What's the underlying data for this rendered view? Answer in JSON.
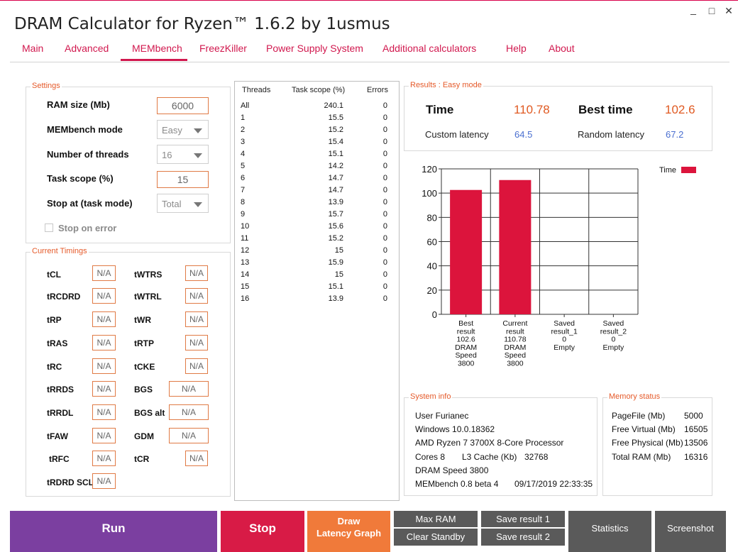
{
  "window": {
    "title": "DRAM Calculator for Ryzen™ 1.6.2 by 1usmus",
    "controls": {
      "minimize": "_",
      "maximize": "□",
      "close": "✕"
    }
  },
  "tabs": [
    "Main",
    "Advanced",
    "MEMbench",
    "FreezKiller",
    "Power Supply System",
    "Additional calculators",
    "Help",
    "About"
  ],
  "active_tab": "MEMbench",
  "settings": {
    "title": "Settings",
    "ram_size_label": "RAM size (Mb)",
    "ram_size_value": "6000",
    "mode_label": "MEMbench mode",
    "mode_value": "Easy",
    "threads_label": "Number of threads",
    "threads_value": "16",
    "task_scope_label": "Task scope (%)",
    "task_scope_value": "15",
    "stop_at_label": "Stop at (task mode)",
    "stop_at_value": "Total",
    "stop_on_error_label": "Stop on error"
  },
  "timings": {
    "title": "Current Timings",
    "left": [
      {
        "label": "tCL",
        "value": "N/A"
      },
      {
        "label": "tRCDRD",
        "value": "N/A"
      },
      {
        "label": "tRP",
        "value": "N/A"
      },
      {
        "label": "tRAS",
        "value": "N/A"
      },
      {
        "label": "tRC",
        "value": "N/A"
      },
      {
        "label": "tRRDS",
        "value": "N/A"
      },
      {
        "label": "tRRDL",
        "value": "N/A"
      },
      {
        "label": "tFAW",
        "value": "N/A"
      },
      {
        "label": "tRFC",
        "value": "N/A"
      },
      {
        "label": "tRDRD SCL",
        "value": "N/A"
      }
    ],
    "right": [
      {
        "label": "tWTRS",
        "value": "N/A"
      },
      {
        "label": "tWTRL",
        "value": "N/A"
      },
      {
        "label": "tWR",
        "value": "N/A"
      },
      {
        "label": "tRTP",
        "value": "N/A"
      },
      {
        "label": "tCKE",
        "value": "N/A"
      },
      {
        "label": "BGS",
        "value": "N/A"
      },
      {
        "label": "BGS alt",
        "value": "N/A"
      },
      {
        "label": "GDM",
        "value": "N/A"
      },
      {
        "label": "tCR",
        "value": "N/A"
      }
    ]
  },
  "threads_table": {
    "headers": [
      "Threads",
      "Task scope (%)",
      "Errors"
    ],
    "rows": [
      [
        "All",
        "240.1",
        "0"
      ],
      [
        "1",
        "15.5",
        "0"
      ],
      [
        "2",
        "15.2",
        "0"
      ],
      [
        "3",
        "15.4",
        "0"
      ],
      [
        "4",
        "15.1",
        "0"
      ],
      [
        "5",
        "14.2",
        "0"
      ],
      [
        "6",
        "14.7",
        "0"
      ],
      [
        "7",
        "14.7",
        "0"
      ],
      [
        "8",
        "13.9",
        "0"
      ],
      [
        "9",
        "15.7",
        "0"
      ],
      [
        "10",
        "15.6",
        "0"
      ],
      [
        "11",
        "15.2",
        "0"
      ],
      [
        "12",
        "15",
        "0"
      ],
      [
        "13",
        "15.9",
        "0"
      ],
      [
        "14",
        "15",
        "0"
      ],
      [
        "15",
        "15.1",
        "0"
      ],
      [
        "16",
        "13.9",
        "0"
      ]
    ]
  },
  "results": {
    "title": "Results : Easy mode",
    "time_label": "Time",
    "time_value": "110.78",
    "best_label": "Best time",
    "best_value": "102.6",
    "custom_label": "Custom latency",
    "custom_value": "64.5",
    "random_label": "Random latency",
    "random_value": "67.2"
  },
  "chart_data": {
    "type": "bar",
    "categories": [
      [
        "Best",
        "result",
        "102.6",
        "DRAM",
        "Speed",
        "3800"
      ],
      [
        "Current",
        "result",
        "110.78",
        "DRAM",
        "Speed",
        "3800"
      ],
      [
        "Saved",
        "result_1",
        "0",
        "Empty"
      ],
      [
        "Saved",
        "result_2",
        "0",
        "Empty"
      ]
    ],
    "series": [
      {
        "name": "Time",
        "values": [
          102.6,
          110.78,
          0,
          0
        ],
        "color": "#dc143c"
      }
    ],
    "ylim": [
      0,
      120
    ],
    "yticks": [
      0,
      20,
      40,
      60,
      80,
      100,
      120
    ],
    "grid": true,
    "legend": "top-right"
  },
  "system_info": {
    "title": "System info",
    "user": "User Furianec",
    "os": "Windows 10.0.18362",
    "cpu": "AMD Ryzen 7 3700X 8-Core Processor",
    "cores": "Cores 8",
    "l3_label": "L3 Cache (Kb)",
    "l3_value": "32768",
    "dram": "DRAM Speed 3800",
    "version": "MEMbench 0.8 beta 4",
    "datetime": "09/17/2019 22:33:35"
  },
  "memory_status": {
    "title": "Memory status",
    "rows": [
      {
        "label": "PageFile (Mb)",
        "value": "5000"
      },
      {
        "label": "Free Virtual (Mb)",
        "value": "16505"
      },
      {
        "label": "Free Physical (Mb)",
        "value": "13506"
      },
      {
        "label": "Total RAM (Mb)",
        "value": "16316"
      }
    ]
  },
  "buttons": {
    "run": "Run",
    "stop": "Stop",
    "draw_1": "Draw",
    "draw_2": "Latency Graph",
    "max_ram": "Max RAM",
    "clear_standby": "Clear Standby",
    "save1": "Save result 1",
    "save2": "Save result 2",
    "statistics": "Statistics",
    "screenshot": "Screenshot"
  },
  "colors": {
    "accent": "#d1184e",
    "orange": "#e55a2a",
    "run": "#7b3fa0",
    "stop": "#d81b46",
    "draw": "#f07a3a",
    "dark": "#5a5a5a",
    "bar": "#dc143c",
    "blue": "#4a6fd0"
  }
}
